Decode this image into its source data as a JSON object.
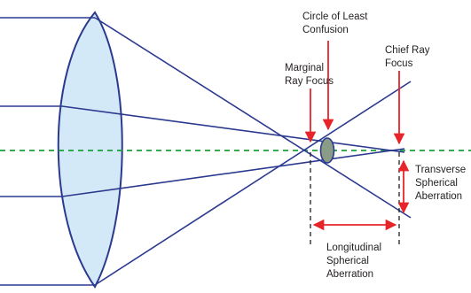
{
  "colors": {
    "ray": "#2b3a8f",
    "lens_fill": "#cfe6f7",
    "lens_stroke": "#2b3a8f",
    "axis": "#1aa038",
    "arrow": "#e8242a",
    "circle_fill": "#8b9c86",
    "dim_line": "#231f20"
  },
  "labels": {
    "circle_least_confusion": [
      "Circle of Least",
      "Confusion"
    ],
    "chief_ray_focus": [
      "Chief Ray",
      "Focus"
    ],
    "marginal_ray_focus": [
      "Marginal",
      "Ray Focus"
    ],
    "transverse_spherical_aberration": [
      "Transverse",
      "Spherical",
      "Aberration"
    ],
    "longitudinal_spherical_aberration": [
      "Longitudinal",
      "Spherical",
      "Aberration"
    ]
  }
}
